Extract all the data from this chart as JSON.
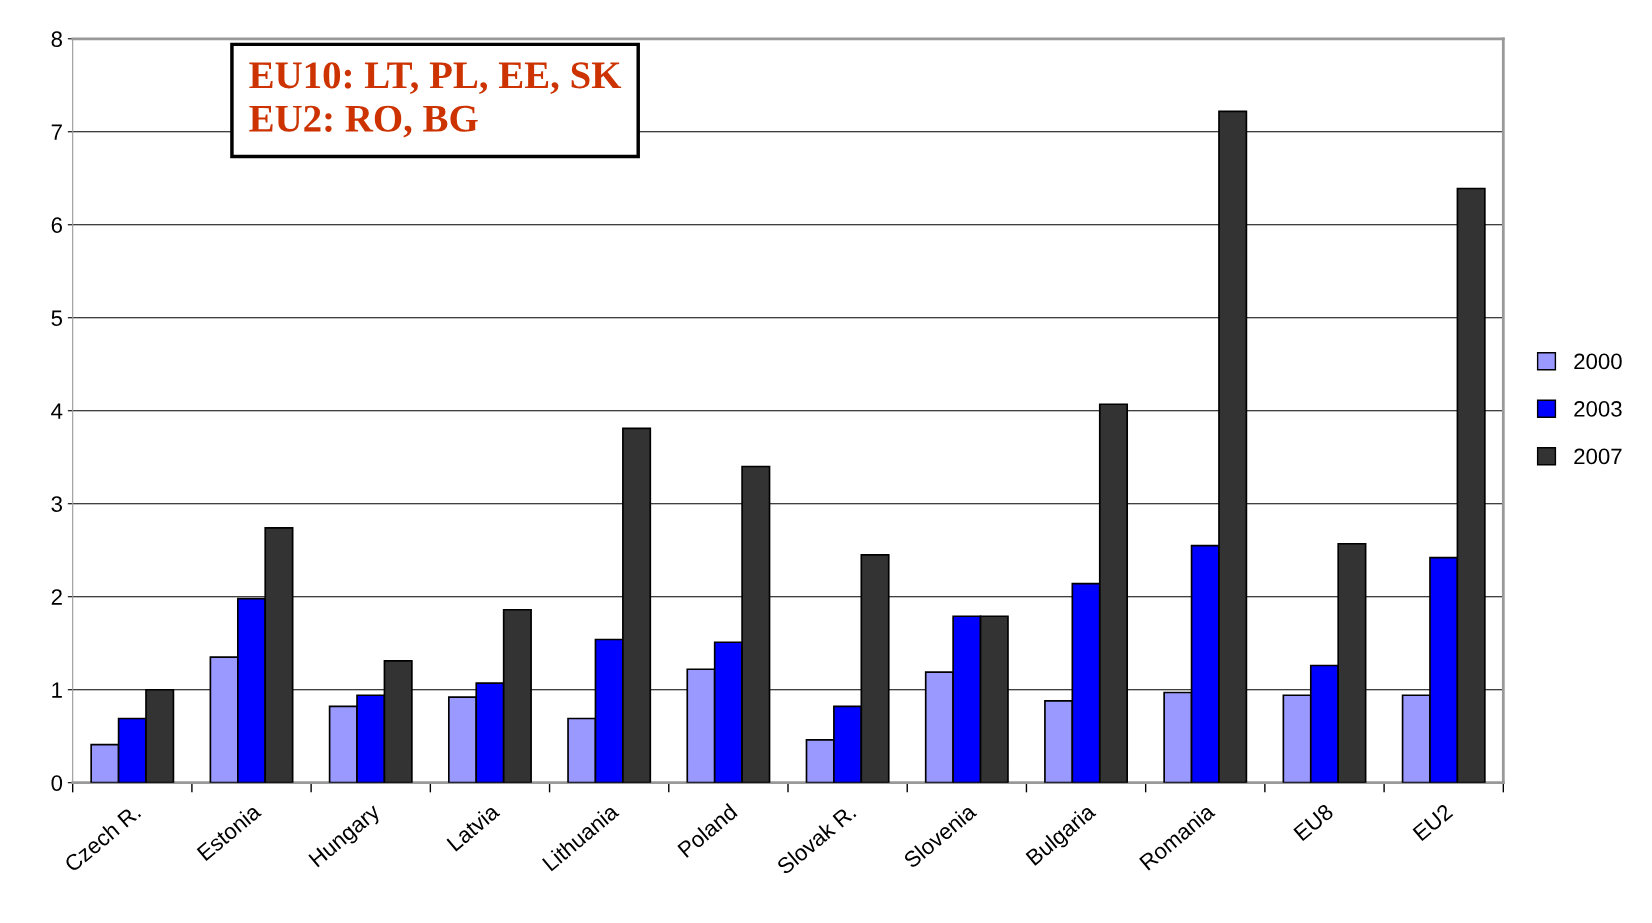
{
  "chart_data": {
    "type": "bar",
    "categories": [
      "Czech R.",
      "Estonia",
      "Hungary",
      "Latvia",
      "Lithuania",
      "Poland",
      "Slovak R.",
      "Slovenia",
      "Bulgaria",
      "Romania",
      "EU8",
      "EU2"
    ],
    "series": [
      {
        "name": "2000",
        "color": "#9999ff",
        "values": [
          0.41,
          1.35,
          0.82,
          0.92,
          0.69,
          1.22,
          0.46,
          1.19,
          0.88,
          0.97,
          0.94,
          0.94
        ]
      },
      {
        "name": "2003",
        "color": "#0000ff",
        "values": [
          0.69,
          1.98,
          0.94,
          1.07,
          1.54,
          1.51,
          0.82,
          1.79,
          2.14,
          2.55,
          1.26,
          2.42
        ]
      },
      {
        "name": "2007",
        "color": "#333333",
        "values": [
          1.0,
          2.74,
          1.31,
          1.86,
          3.81,
          3.4,
          2.45,
          1.79,
          4.07,
          7.22,
          2.57,
          6.39
        ]
      }
    ],
    "ylim": [
      0,
      8
    ],
    "yticks": [
      0,
      1,
      2,
      3,
      4,
      5,
      6,
      7,
      8
    ],
    "grid": "y",
    "legend": "right",
    "annotations": [
      "EU10: LT, PL, EE, SK\nEU2: RO, BG"
    ]
  }
}
